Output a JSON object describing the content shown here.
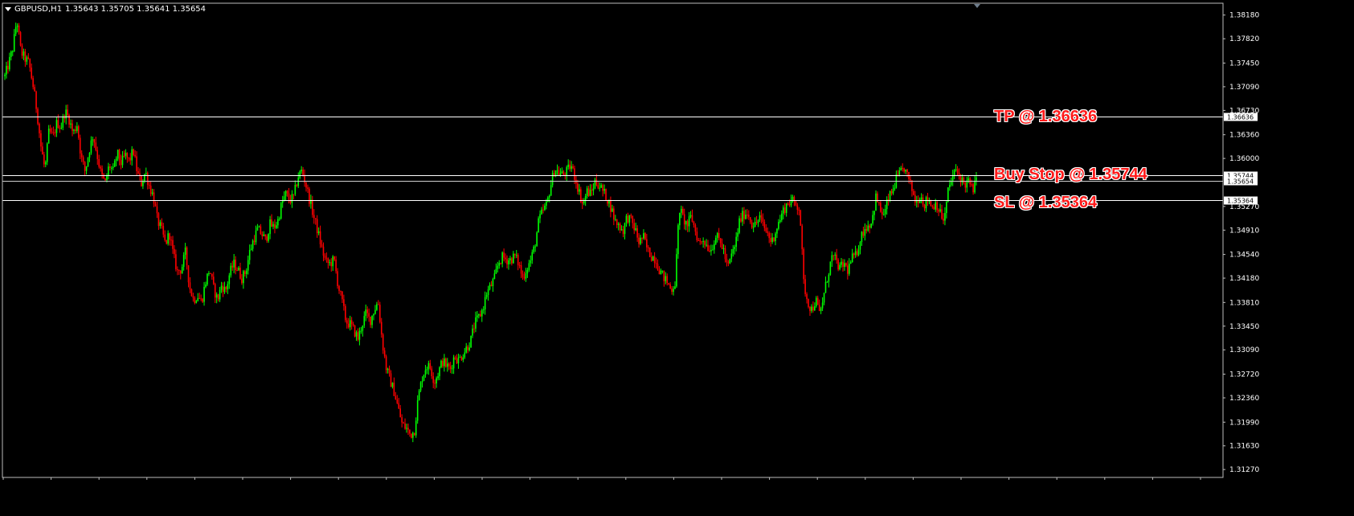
{
  "header": {
    "symbol": "GBPUSD,H1",
    "ohlc": "1.35643 1.35705 1.35641 1.35654"
  },
  "colors": {
    "background": "#000000",
    "bull": "#00ff00",
    "bear": "#ff0000",
    "level_line": "#ffffff",
    "annotation": "#ff1a1a"
  },
  "chart_data": {
    "type": "line",
    "timeframe": "H1",
    "ylim": [
      1.3115,
      1.3836
    ],
    "y_ticks": [
      "1.38180",
      "1.37820",
      "1.37450",
      "1.37090",
      "1.36730",
      "1.36360",
      "1.36000",
      "1.35270",
      "1.34910",
      "1.34540",
      "1.34180",
      "1.33810",
      "1.33450",
      "1.33090",
      "1.32720",
      "1.32360",
      "1.31990",
      "1.31630",
      "1.31270"
    ],
    "series": [
      {
        "values": [
          1.3725,
          1.3745,
          1.3768,
          1.3812,
          1.3762,
          1.3752,
          1.3745,
          1.3712,
          1.3672,
          1.3618,
          1.3582,
          1.3642,
          1.3632,
          1.3655,
          1.3648,
          1.3672,
          1.366,
          1.3638,
          1.3652,
          1.3602,
          1.358,
          1.3612,
          1.3636,
          1.3605,
          1.3575,
          1.3562,
          1.359,
          1.358,
          1.3608,
          1.3592,
          1.3605,
          1.3596,
          1.3612,
          1.3578,
          1.3562,
          1.358,
          1.3558,
          1.3542,
          1.3506,
          1.3492,
          1.347,
          1.3486,
          1.3452,
          1.3428,
          1.3432,
          1.3458,
          1.3405,
          1.3385,
          1.3392,
          1.3382,
          1.3412,
          1.3432,
          1.3402,
          1.3385,
          1.3408,
          1.3398,
          1.3425,
          1.344,
          1.3432,
          1.3418,
          1.3428,
          1.3458,
          1.3478,
          1.3492,
          1.3485,
          1.3475,
          1.35,
          1.3495,
          1.3505,
          1.3532,
          1.3546,
          1.3536,
          1.3542,
          1.3572,
          1.3582,
          1.356,
          1.3535,
          1.351,
          1.3488,
          1.3462,
          1.3442,
          1.344,
          1.3446,
          1.3408,
          1.3382,
          1.3352,
          1.3348,
          1.3338,
          1.3326,
          1.3348,
          1.3365,
          1.3353,
          1.337,
          1.3382,
          1.3322,
          1.3282,
          1.3262,
          1.3245,
          1.322,
          1.3195,
          1.319,
          1.318,
          1.3185,
          1.3238,
          1.3268,
          1.3285,
          1.3282,
          1.326,
          1.3275,
          1.3292,
          1.3285,
          1.328,
          1.33,
          1.3293,
          1.3302,
          1.3312,
          1.3322,
          1.3348,
          1.3358,
          1.337,
          1.3395,
          1.3405,
          1.3418,
          1.3442,
          1.345,
          1.3446,
          1.3446,
          1.3452,
          1.344,
          1.3418,
          1.3433,
          1.3445,
          1.3467,
          1.3505,
          1.352,
          1.353,
          1.356,
          1.3585,
          1.3578,
          1.3575,
          1.358,
          1.359,
          1.3572,
          1.355,
          1.353,
          1.355,
          1.3546,
          1.3565,
          1.356,
          1.355,
          1.354,
          1.3525,
          1.3505,
          1.3498,
          1.349,
          1.3512,
          1.3505,
          1.3492,
          1.3472,
          1.3482,
          1.3462,
          1.3452,
          1.3448,
          1.3432,
          1.342,
          1.3412,
          1.34,
          1.3412,
          1.3525,
          1.3508,
          1.3498,
          1.3512,
          1.349,
          1.347,
          1.3478,
          1.3466,
          1.3462,
          1.3482,
          1.3475,
          1.3462,
          1.3432,
          1.3452,
          1.347,
          1.3505,
          1.3515,
          1.3518,
          1.3502,
          1.3498,
          1.3512,
          1.3496,
          1.3486,
          1.3472,
          1.349,
          1.3506,
          1.3522,
          1.3532,
          1.3536,
          1.353,
          1.3525,
          1.341,
          1.3382,
          1.337,
          1.3385,
          1.3362,
          1.3392,
          1.3422,
          1.345,
          1.3445,
          1.3432,
          1.344,
          1.343,
          1.3448,
          1.3452,
          1.3476,
          1.3492,
          1.3498,
          1.3505,
          1.3542,
          1.3522,
          1.3512,
          1.3538,
          1.3548,
          1.3568,
          1.3576,
          1.3586,
          1.357,
          1.3552,
          1.3532,
          1.3546,
          1.353,
          1.354,
          1.3526,
          1.3533,
          1.3516,
          1.3505,
          1.3552,
          1.3572,
          1.3582,
          1.3572,
          1.356,
          1.3565,
          1.3552,
          1.3565
        ]
      }
    ],
    "levels": [
      {
        "name": "TP",
        "value": 1.36636,
        "label": "TP @ 1.36636",
        "axis_label": "1.36636"
      },
      {
        "name": "Buy Stop",
        "value": 1.35744,
        "label": "Buy Stop @ 1.35744",
        "axis_label": "1.35744"
      },
      {
        "name": "Current",
        "value": 1.35654,
        "axis_label": "1.35654"
      },
      {
        "name": "SL",
        "value": 1.35364,
        "label": "SL @ 1.35364",
        "axis_label": "1.35364"
      }
    ]
  }
}
